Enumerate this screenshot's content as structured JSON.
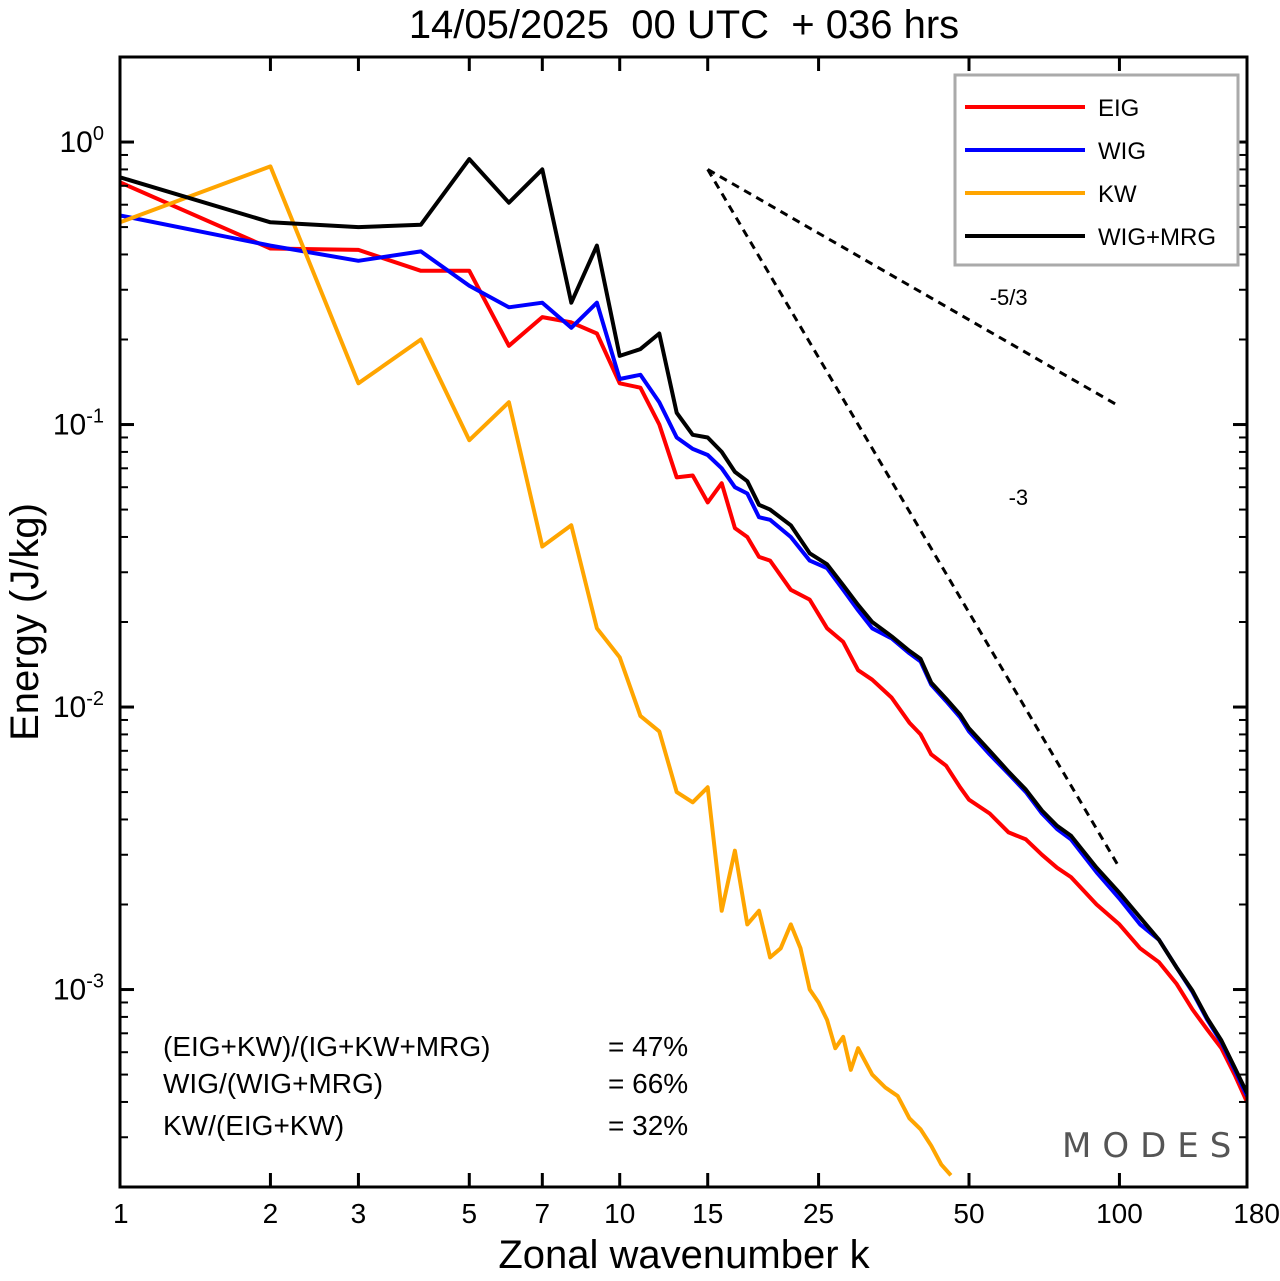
{
  "chart_data": {
    "type": "line",
    "title": "14/05/2025  00 UTC  + 036 hrs",
    "xlabel": "Zonal wavenumber k",
    "ylabel": "Energy (J/kg)",
    "x_scale": "log",
    "y_scale": "log",
    "xlim": [
      1,
      180
    ],
    "ylim": [
      0.0002,
      2.0
    ],
    "x_ticks": [
      {
        "value": 1,
        "label": "1"
      },
      {
        "value": 2,
        "label": "2"
      },
      {
        "value": 3,
        "label": "3"
      },
      {
        "value": 5,
        "label": "5"
      },
      {
        "value": 7,
        "label": "7"
      },
      {
        "value": 10,
        "label": "10"
      },
      {
        "value": 15,
        "label": "15"
      },
      {
        "value": 25,
        "label": "25"
      },
      {
        "value": 50,
        "label": "50"
      },
      {
        "value": 100,
        "label": "100"
      },
      {
        "value": 180,
        "label": "180"
      }
    ],
    "y_ticks": [
      {
        "value": 1.0,
        "base": "10",
        "exp": "0"
      },
      {
        "value": 0.1,
        "base": "10",
        "exp": "-1"
      },
      {
        "value": 0.01,
        "base": "10",
        "exp": "-2"
      },
      {
        "value": 0.001,
        "base": "10",
        "exp": "-3"
      }
    ],
    "grid": false,
    "legend_position": "top-right",
    "series": [
      {
        "name": "EIG",
        "color": "#ff0000",
        "x": [
          1,
          2,
          3,
          4,
          5,
          6,
          7,
          8,
          9,
          10,
          11,
          12,
          13,
          14,
          15,
          16,
          17,
          18,
          19,
          20,
          22,
          24,
          26,
          28,
          30,
          32,
          35,
          38,
          40,
          42,
          45,
          48,
          50,
          55,
          60,
          65,
          70,
          75,
          80,
          90,
          100,
          110,
          120,
          130,
          140,
          150,
          160,
          170,
          180
        ],
        "y": [
          0.72,
          0.42,
          0.415,
          0.35,
          0.35,
          0.19,
          0.24,
          0.23,
          0.21,
          0.14,
          0.135,
          0.1,
          0.065,
          0.066,
          0.053,
          0.062,
          0.043,
          0.04,
          0.034,
          0.033,
          0.026,
          0.024,
          0.019,
          0.017,
          0.0135,
          0.0125,
          0.0108,
          0.0088,
          0.008,
          0.0068,
          0.0062,
          0.0052,
          0.0047,
          0.0042,
          0.0036,
          0.0034,
          0.003,
          0.0027,
          0.0025,
          0.002,
          0.0017,
          0.0014,
          0.00125,
          0.00105,
          0.00085,
          0.00072,
          0.00062,
          0.0005,
          0.0004
        ]
      },
      {
        "name": "WIG",
        "color": "#0000ff",
        "x": [
          1,
          2,
          3,
          4,
          5,
          6,
          7,
          8,
          9,
          10,
          11,
          12,
          13,
          14,
          15,
          16,
          17,
          18,
          19,
          20,
          22,
          24,
          26,
          28,
          30,
          32,
          35,
          38,
          40,
          42,
          45,
          48,
          50,
          55,
          60,
          65,
          70,
          75,
          80,
          90,
          100,
          110,
          120,
          130,
          140,
          150,
          160,
          170,
          180
        ],
        "y": [
          0.55,
          0.43,
          0.38,
          0.41,
          0.31,
          0.26,
          0.27,
          0.22,
          0.27,
          0.145,
          0.15,
          0.12,
          0.09,
          0.082,
          0.078,
          0.07,
          0.06,
          0.057,
          0.047,
          0.046,
          0.04,
          0.033,
          0.031,
          0.026,
          0.022,
          0.019,
          0.0175,
          0.0155,
          0.0145,
          0.012,
          0.0105,
          0.0092,
          0.0082,
          0.0068,
          0.0058,
          0.005,
          0.0042,
          0.0037,
          0.0034,
          0.0026,
          0.0021,
          0.0017,
          0.0015,
          0.0012,
          0.00098,
          0.00078,
          0.00065,
          0.00052,
          0.00042
        ]
      },
      {
        "name": "KW",
        "color": "#ffa500",
        "x": [
          1,
          2,
          3,
          4,
          5,
          6,
          7,
          8,
          9,
          10,
          11,
          12,
          13,
          14,
          15,
          16,
          17,
          18,
          19,
          20,
          21,
          22,
          23,
          24,
          25,
          26,
          27,
          28,
          29,
          30,
          32,
          34,
          36,
          38,
          40,
          42,
          44,
          46
        ],
        "y": [
          0.52,
          0.82,
          0.14,
          0.2,
          0.088,
          0.12,
          0.037,
          0.044,
          0.019,
          0.015,
          0.0093,
          0.0082,
          0.005,
          0.0046,
          0.0052,
          0.0019,
          0.0031,
          0.0017,
          0.0019,
          0.0013,
          0.0014,
          0.0017,
          0.0014,
          0.001,
          0.0009,
          0.00078,
          0.00062,
          0.00068,
          0.00052,
          0.00062,
          0.0005,
          0.00045,
          0.00042,
          0.00035,
          0.00032,
          0.00028,
          0.00024,
          0.00022
        ]
      },
      {
        "name": "WIG+MRG",
        "color": "#000000",
        "x": [
          1,
          2,
          3,
          4,
          5,
          6,
          7,
          8,
          9,
          10,
          11,
          12,
          13,
          14,
          15,
          16,
          17,
          18,
          19,
          20,
          22,
          24,
          26,
          28,
          30,
          32,
          35,
          38,
          40,
          42,
          45,
          48,
          50,
          55,
          60,
          65,
          70,
          75,
          80,
          90,
          100,
          110,
          120,
          130,
          140,
          150,
          160,
          170,
          180
        ],
        "y": [
          0.75,
          0.52,
          0.5,
          0.51,
          0.87,
          0.61,
          0.8,
          0.27,
          0.43,
          0.175,
          0.185,
          0.21,
          0.11,
          0.092,
          0.09,
          0.08,
          0.068,
          0.063,
          0.052,
          0.05,
          0.044,
          0.035,
          0.032,
          0.027,
          0.023,
          0.02,
          0.0178,
          0.0158,
          0.0148,
          0.0122,
          0.0107,
          0.0094,
          0.0084,
          0.007,
          0.0059,
          0.0051,
          0.0043,
          0.0038,
          0.0035,
          0.0027,
          0.0022,
          0.0018,
          0.0015,
          0.0012,
          0.00099,
          0.00079,
          0.00066,
          0.00053,
          0.00043
        ]
      }
    ],
    "reference_lines": [
      {
        "label": "-5/3",
        "x": [
          15,
          100
        ],
        "y": [
          0.8,
          0.116
        ]
      },
      {
        "label": "-3",
        "x": [
          15,
          100
        ],
        "y": [
          0.8,
          0.0027
        ]
      }
    ],
    "annotations": [
      {
        "label": "(EIG+KW)/(IG+KW+MRG)",
        "value": "= 47%"
      },
      {
        "label": "WIG/(WIG+MRG)",
        "value": "= 66%"
      },
      {
        "label": "KW/(EIG+KW)",
        "value": "= 32%"
      }
    ],
    "watermark": "MODES"
  }
}
